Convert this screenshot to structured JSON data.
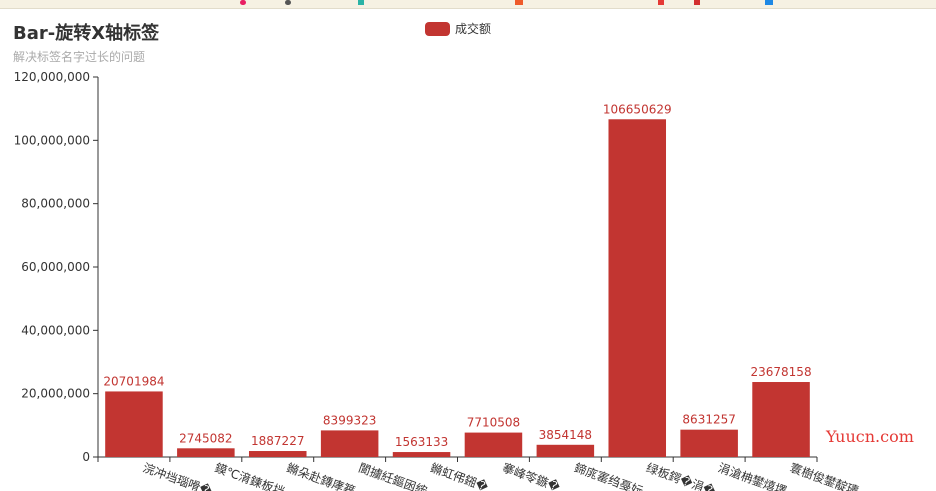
{
  "chart_data": {
    "type": "bar",
    "title": "Bar-旋转X轴标签",
    "subtitle": "解决标签名字过长的问题",
    "legend": {
      "label": "成交额",
      "position": "top-center"
    },
    "categories": [
      "浣冲垱瑙嗗�",
      "鏌℃湇鍊板垱",
      "鏅朵赴鏄庨簭",
      "閬擄紝鏂囦綋",
      "鏅虹伄鎺�",
      "搴峰笭鏃�",
      "鍗庣寚绉戞妧",
      "绿板鍔�涓�",
      "涓滄柟鐢熺墿",
      "寰樹俊鐢靛瓙"
    ],
    "values": [
      20701984,
      2745082,
      1887227,
      8399323,
      1563133,
      7710508,
      3854148,
      106650629,
      8631257,
      23678158
    ],
    "ylim": [
      0,
      120000000
    ],
    "yticks": [
      "0",
      "20,000,000",
      "40,000,000",
      "60,000,000",
      "80,000,000",
      "100,000,000",
      "120,000,000"
    ],
    "grid": false,
    "color": "#c23531",
    "label_color": "#c23531",
    "axis_color": "#333333"
  },
  "watermark": "Yuucn.com"
}
